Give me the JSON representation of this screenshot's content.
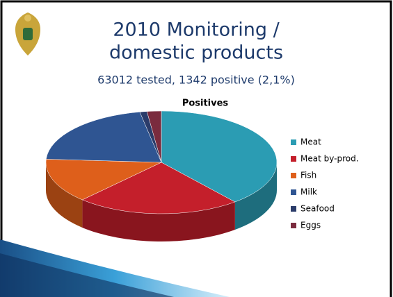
{
  "chart_data": {
    "type": "pie",
    "title_lines": [
      "2010 Monitoring /",
      "domestic products"
    ],
    "subtitle": "63012 tested, 1342 positive (2,1%)",
    "chart_title": "Positives",
    "categories": [
      "Meat",
      "Meat by-prod.",
      "Fish",
      "Milk",
      "Seafood",
      "Eggs"
    ],
    "values": [
      39,
      23,
      14,
      21,
      1,
      2
    ],
    "colors": [
      "#2b9cb3",
      "#c41f2b",
      "#de5f1b",
      "#2f5592",
      "#2b3c6a",
      "#7a2b3e"
    ],
    "legend": "right"
  }
}
